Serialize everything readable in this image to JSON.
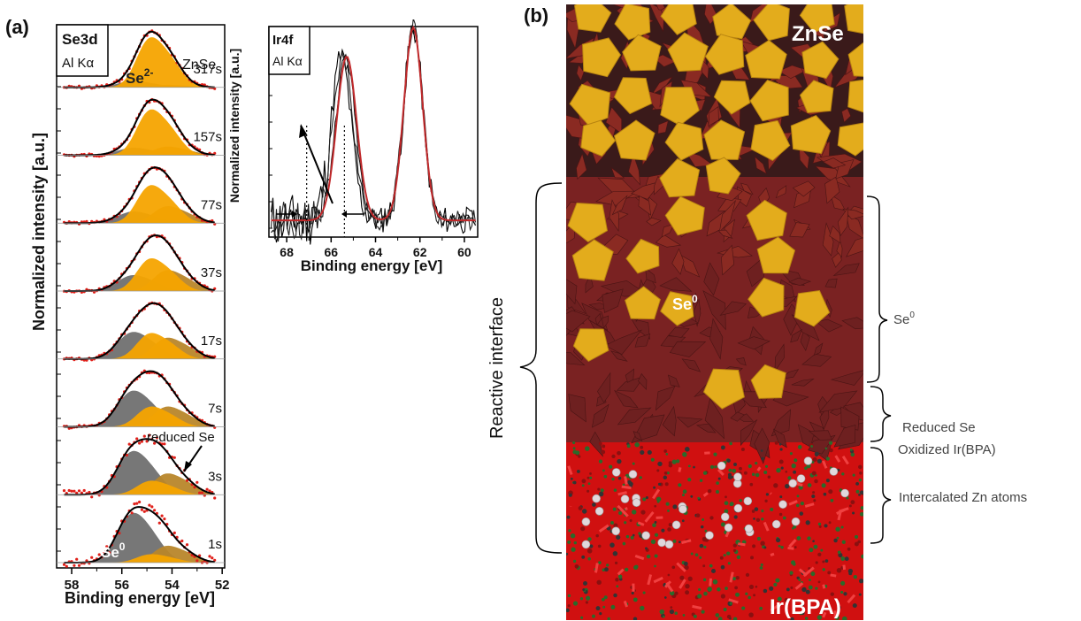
{
  "panel_a": {
    "label": "(a)",
    "se3d": {
      "title": "Se3d",
      "source": "Al Kα",
      "sample": "ZnSe",
      "ylabel": "Normalized intensity [a.u.]",
      "xlabel": "Binding energy [eV]",
      "peak_labels": {
        "se2": "Se",
        "se2_sup": "2-",
        "se0": "Se",
        "se0_sup": "0"
      },
      "annotation": "reduced Se",
      "colors": {
        "se2": "#f5a400",
        "se0": "#707070",
        "reduced": "#b8862a",
        "fit": "#000000",
        "data": "#e0201a"
      }
    },
    "ir4f": {
      "title": "Ir4f",
      "source": "Al Kα",
      "ylabel": "Normalized intensity [a.u.]",
      "xlabel": "Binding energy [eV]"
    }
  },
  "chart_data": [
    {
      "type": "area",
      "name": "Se3d",
      "xlabel": "Binding energy [eV]",
      "ylabel": "Normalized intensity [a.u.]",
      "x_reversed": true,
      "xlim": [
        58.6,
        51.9
      ],
      "xticks": [
        58,
        56,
        54,
        52
      ],
      "series": [
        {
          "name": "317s",
          "se0": 0.12,
          "se2": 1.0,
          "reduced": 0.05
        },
        {
          "name": "157s",
          "se0": 0.15,
          "se2": 0.95,
          "reduced": 0.18
        },
        {
          "name": "77s",
          "se0": 0.25,
          "se2": 0.85,
          "reduced": 0.38
        },
        {
          "name": "37s",
          "se0": 0.35,
          "se2": 0.75,
          "reduced": 0.48
        },
        {
          "name": "17s",
          "se0": 0.55,
          "se2": 0.55,
          "reduced": 0.45
        },
        {
          "name": "7s",
          "se0": 0.72,
          "se2": 0.42,
          "reduced": 0.42
        },
        {
          "name": "3s",
          "se0": 0.75,
          "se2": 0.25,
          "reduced": 0.38
        },
        {
          "name": "1s",
          "se0": 0.85,
          "se2": 0.15,
          "reduced": 0.3
        }
      ]
    },
    {
      "type": "line",
      "name": "Ir4f",
      "xlabel": "Binding energy [eV]",
      "ylabel": "Normalized intensity [a.u.]",
      "x_reversed": true,
      "xlim": [
        68.8,
        59.4
      ],
      "xticks": [
        68,
        66,
        64,
        62,
        60
      ],
      "peaks": [
        65.3,
        62.3
      ],
      "markers": [
        67.1,
        65.4
      ]
    }
  ],
  "panel_b": {
    "label": "(b)",
    "top_label": "ZnSe",
    "bottom_label": "Ir(BPA)",
    "center_label": "Se",
    "center_label_sup": "0",
    "reactive_interface": "Reactive interface",
    "right_labels": {
      "se0": "Se",
      "se0_sup": "0",
      "reduced_line1": "Reduced Se",
      "reduced_line2": "Oxidized Ir(BPA)",
      "intercalated": "Intercalated Zn atoms"
    },
    "colors": {
      "znse": "#e3ac1c",
      "se0": "#7a2222",
      "irbpa": "#d01010"
    }
  }
}
